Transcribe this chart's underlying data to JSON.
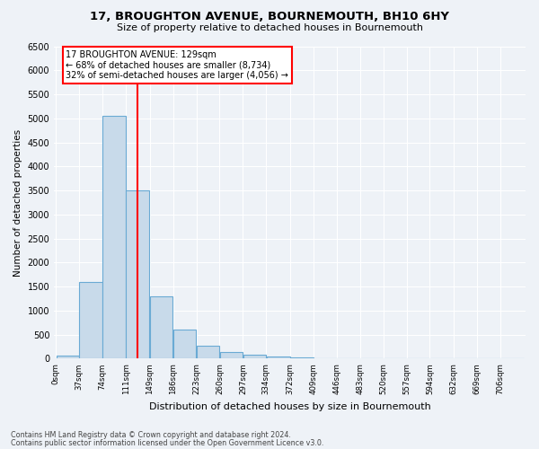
{
  "title_line1": "17, BROUGHTON AVENUE, BOURNEMOUTH, BH10 6HY",
  "title_line2": "Size of property relative to detached houses in Bournemouth",
  "xlabel": "Distribution of detached houses by size in Bournemouth",
  "ylabel": "Number of detached properties",
  "bar_color": "#c8daea",
  "bar_edge_color": "#6aaad4",
  "vline_color": "red",
  "vline_x": 129,
  "annotation_text": "17 BROUGHTON AVENUE: 129sqm\n← 68% of detached houses are smaller (8,734)\n32% of semi-detached houses are larger (4,056) →",
  "annotation_box_color": "white",
  "annotation_box_edge_color": "red",
  "bins": [
    0,
    37,
    74,
    111,
    149,
    186,
    223,
    260,
    297,
    334,
    372,
    409,
    446,
    483,
    520,
    557,
    594,
    632,
    669,
    706,
    743
  ],
  "counts": [
    60,
    1600,
    5050,
    3500,
    1300,
    600,
    270,
    130,
    80,
    50,
    30,
    10,
    5,
    3,
    2,
    1,
    1,
    0,
    0,
    0
  ],
  "ylim": [
    0,
    6500
  ],
  "yticks": [
    0,
    500,
    1000,
    1500,
    2000,
    2500,
    3000,
    3500,
    4000,
    4500,
    5000,
    5500,
    6000,
    6500
  ],
  "footer_line1": "Contains HM Land Registry data © Crown copyright and database right 2024.",
  "footer_line2": "Contains public sector information licensed under the Open Government Licence v3.0.",
  "background_color": "#eef2f7",
  "grid_color": "#d0dce8"
}
